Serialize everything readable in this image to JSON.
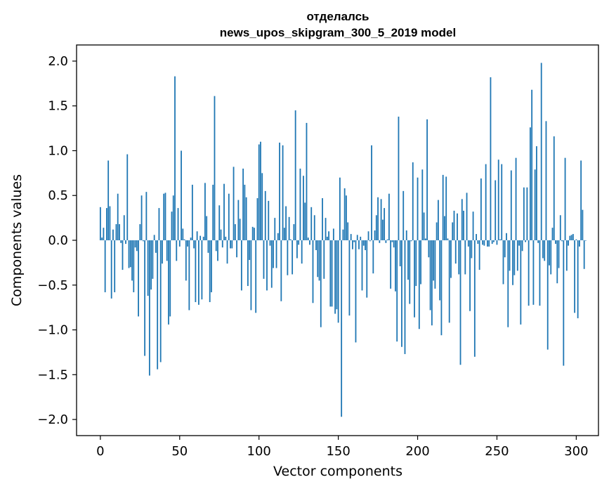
{
  "chart_data": {
    "type": "bar",
    "title_line1": "отделалсь",
    "title_line2": "news_upos_skipgram_300_5_2019 model",
    "xlabel": "Vector components",
    "ylabel": "Components values",
    "xlim": [
      -15,
      314
    ],
    "ylim": [
      -2.18,
      2.18
    ],
    "xticks": [
      0,
      50,
      100,
      150,
      200,
      250,
      300
    ],
    "xtick_labels": [
      "0",
      "50",
      "100",
      "150",
      "200",
      "250",
      "300"
    ],
    "yticks": [
      2.0,
      1.5,
      1.0,
      0.5,
      0.0,
      -0.5,
      -1.0,
      -1.5,
      -2.0
    ],
    "ytick_labels": [
      "2.0",
      "1.5",
      "1.0",
      "0.5",
      "0.0",
      "−0.5",
      "−1.0",
      "−1.5",
      "−2.0"
    ],
    "color": "#1f77b4",
    "values": [
      0.37,
      0.03,
      0.14,
      -0.58,
      0.36,
      0.89,
      0.38,
      -0.65,
      0.12,
      -0.58,
      0.18,
      0.52,
      0.18,
      -0.03,
      -0.33,
      0.28,
      -0.04,
      0.96,
      -0.31,
      -0.3,
      -0.45,
      -0.58,
      -0.08,
      -0.12,
      -0.85,
      0.18,
      0.5,
      -0.01,
      -1.29,
      0.54,
      -0.62,
      -1.51,
      -0.55,
      -0.43,
      0.06,
      -0.14,
      -1.44,
      0.36,
      -1.36,
      -0.26,
      0.52,
      0.53,
      -0.23,
      -0.94,
      -0.85,
      0.32,
      0.5,
      1.83,
      -0.23,
      0.36,
      -0.07,
      1.0,
      0.13,
      0.01,
      -0.45,
      -0.07,
      -0.78,
      0.03,
      0.62,
      -0.09,
      -0.69,
      0.1,
      -0.72,
      0.05,
      -0.66,
      0.04,
      0.64,
      0.27,
      -0.14,
      -0.69,
      -0.58,
      0.62,
      1.61,
      -0.12,
      -0.23,
      0.39,
      0.12,
      -0.08,
      0.63,
      0.04,
      -0.26,
      0.52,
      -0.09,
      -0.09,
      0.82,
      0.18,
      -0.19,
      0.45,
      0.24,
      -0.56,
      0.8,
      0.62,
      0.48,
      -0.51,
      -0.22,
      -0.78,
      0.15,
      0.14,
      -0.81,
      0.47,
      1.07,
      1.1,
      0.75,
      -0.43,
      0.55,
      -0.56,
      0.44,
      -0.06,
      -0.53,
      -0.31,
      0.25,
      -0.31,
      0.08,
      1.09,
      -0.68,
      1.06,
      0.14,
      0.38,
      -0.39,
      0.26,
      0.01,
      -0.38,
      0.18,
      1.45,
      -0.2,
      -0.05,
      0.8,
      -0.26,
      0.72,
      0.42,
      1.31,
      0.03,
      -0.05,
      0.37,
      -0.7,
      0.28,
      -0.11,
      -0.41,
      -0.45,
      -0.97,
      0.47,
      -0.43,
      0.25,
      0.04,
      0.1,
      -0.74,
      -0.74,
      0.13,
      -0.82,
      -0.77,
      -0.92,
      0.7,
      -1.97,
      0.12,
      0.58,
      0.5,
      0.2,
      -0.84,
      0.07,
      -0.1,
      -0.02,
      -1.14,
      0.06,
      -0.1,
      0.04,
      -0.56,
      -0.06,
      -0.11,
      -0.64,
      0.1,
      -0.01,
      1.06,
      -0.37,
      0.11,
      0.28,
      0.48,
      -0.03,
      0.46,
      0.23,
      0.36,
      -0.03,
      0.01,
      0.52,
      -0.54,
      -0.02,
      -0.08,
      -0.57,
      -1.13,
      1.38,
      -0.29,
      -1.19,
      0.55,
      -1.27,
      0.11,
      -0.44,
      -0.71,
      -0.01,
      0.87,
      -0.86,
      -0.51,
      0.7,
      -0.99,
      -0.49,
      0.79,
      0.31,
      0.02,
      1.35,
      -0.19,
      -0.78,
      -0.95,
      -0.45,
      -0.54,
      0.2,
      0.45,
      -0.67,
      -1.06,
      0.73,
      0.27,
      0.71,
      0.02,
      -0.92,
      -0.42,
      0.2,
      0.33,
      -0.26,
      0.3,
      -0.38,
      -1.39,
      0.46,
      0.33,
      -0.38,
      0.53,
      -0.07,
      -0.79,
      -0.2,
      0.32,
      -1.3,
      0.07,
      -0.04,
      -0.33,
      0.69,
      -0.05,
      -0.06,
      0.85,
      -0.07,
      -0.07,
      1.82,
      -0.04,
      -0.02,
      0.67,
      -0.05,
      0.9,
      0.01,
      0.85,
      -0.49,
      -0.19,
      0.08,
      -0.97,
      -0.34,
      0.78,
      -0.5,
      -0.39,
      0.92,
      -0.34,
      -0.06,
      -0.94,
      -0.12,
      0.59,
      -0.02,
      0.59,
      -0.73,
      1.26,
      1.68,
      -0.72,
      0.79,
      1.05,
      -0.03,
      -0.73,
      1.98,
      -0.2,
      -0.23,
      1.33,
      -1.22,
      -0.28,
      -0.38,
      0.14,
      1.16,
      -0.04,
      -0.48,
      -0.31,
      0.28,
      -0.01,
      -1.4,
      0.92,
      -0.34,
      -0.06,
      0.05,
      0.06,
      0.07,
      -0.81,
      0.01,
      -0.87,
      -0.07,
      0.89,
      0.34,
      -0.32,
      0.0
    ]
  }
}
